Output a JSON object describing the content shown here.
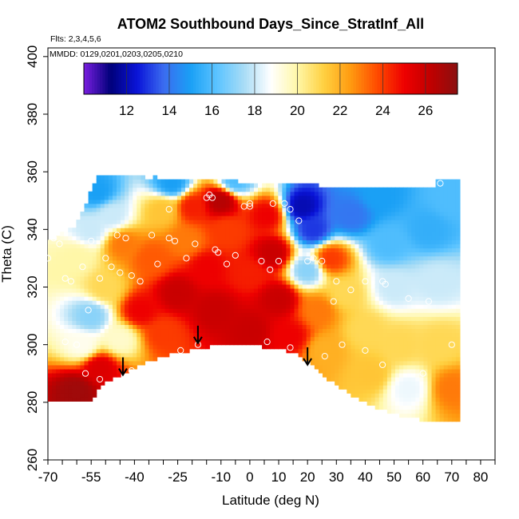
{
  "chart_data": {
    "type": "heatmap",
    "title": "ATOM2 Southbound Days_Since_StratInf_All",
    "flights_label": "Flts: 2,3,4,5,6",
    "dates_label": "MMDD: 0129,0201,0203,0205,0210",
    "xlabel": "Latitude (deg N)",
    "ylabel": "Theta (C)",
    "xlim": [
      -70,
      85
    ],
    "ylim": [
      260,
      403
    ],
    "x_ticks": [
      -70,
      -55,
      -40,
      -25,
      -10,
      0,
      10,
      20,
      30,
      40,
      50,
      60,
      70,
      80
    ],
    "y_ticks": [
      260,
      280,
      300,
      320,
      340,
      360,
      380,
      400
    ],
    "colorbar": {
      "range": [
        10,
        27.5
      ],
      "ticks": [
        12,
        14,
        16,
        18,
        20,
        22,
        24,
        26
      ],
      "colors": [
        "#7a1fe0",
        "#00007a",
        "#0a14d8",
        "#3b6cf0",
        "#1aa0f5",
        "#5cc4ff",
        "#a8dcf5",
        "#ffffff",
        "#fff7a8",
        "#ffd040",
        "#ff9a10",
        "#ff4a00",
        "#ee0000",
        "#c00000",
        "#8a1010"
      ]
    },
    "lower_boundary": {
      "lat": [
        -56,
        -50,
        -44,
        -38,
        -31,
        -24,
        -18,
        -13,
        -9,
        -2,
        6,
        15,
        20,
        26,
        33,
        40,
        47,
        54,
        61,
        70
      ],
      "theta": [
        280,
        287,
        290,
        293,
        295.5,
        297.5,
        298.5,
        299.5,
        300.5,
        300,
        299,
        297.5,
        294,
        289,
        284,
        280,
        277,
        275,
        273.5,
        273
      ]
    },
    "field": [
      {
        "lat": -60,
        "theta": 330,
        "value": 20
      },
      {
        "lat": -55,
        "theta": 340,
        "value": 18
      },
      {
        "lat": -53,
        "theta": 353,
        "value": 15
      },
      {
        "lat": -48,
        "theta": 345,
        "value": 18
      },
      {
        "lat": -44,
        "theta": 335,
        "value": 23
      },
      {
        "lat": -50,
        "theta": 320,
        "value": 21
      },
      {
        "lat": -55,
        "theta": 310,
        "value": 17
      },
      {
        "lat": -58,
        "theta": 300,
        "value": 19
      },
      {
        "lat": -60,
        "theta": 284,
        "value": 27
      },
      {
        "lat": -52,
        "theta": 292,
        "value": 25.5
      },
      {
        "lat": -45,
        "theta": 302,
        "value": 19.5
      },
      {
        "lat": -38,
        "theta": 312,
        "value": 25
      },
      {
        "lat": -34,
        "theta": 330,
        "value": 23.5
      },
      {
        "lat": -30,
        "theta": 347,
        "value": 21.5
      },
      {
        "lat": -27,
        "theta": 356,
        "value": 15
      },
      {
        "lat": -20,
        "theta": 348,
        "value": 24.5
      },
      {
        "lat": -22,
        "theta": 336,
        "value": 23
      },
      {
        "lat": -25,
        "theta": 318,
        "value": 26
      },
      {
        "lat": -30,
        "theta": 304,
        "value": 24
      },
      {
        "lat": -15,
        "theta": 327,
        "value": 25
      },
      {
        "lat": -12,
        "theta": 312,
        "value": 26
      },
      {
        "lat": -10,
        "theta": 350,
        "value": 26.5
      },
      {
        "lat": -8,
        "theta": 340,
        "value": 24
      },
      {
        "lat": -5,
        "theta": 357,
        "value": 16
      },
      {
        "lat": 0,
        "theta": 325,
        "value": 24.5
      },
      {
        "lat": 0,
        "theta": 305,
        "value": 26
      },
      {
        "lat": 6,
        "theta": 345,
        "value": 25
      },
      {
        "lat": 8,
        "theta": 332,
        "value": 26
      },
      {
        "lat": 10,
        "theta": 316,
        "value": 26
      },
      {
        "lat": 14,
        "theta": 303,
        "value": 25
      },
      {
        "lat": 18,
        "theta": 348,
        "value": 12
      },
      {
        "lat": 22,
        "theta": 340,
        "value": 13
      },
      {
        "lat": 20,
        "theta": 326,
        "value": 17
      },
      {
        "lat": 24,
        "theta": 312,
        "value": 23
      },
      {
        "lat": 26,
        "theta": 298,
        "value": 22
      },
      {
        "lat": 28,
        "theta": 330,
        "value": 24
      },
      {
        "lat": 33,
        "theta": 318,
        "value": 21
      },
      {
        "lat": 35,
        "theta": 345,
        "value": 14
      },
      {
        "lat": 40,
        "theta": 305,
        "value": 21
      },
      {
        "lat": 42,
        "theta": 290,
        "value": 21.5
      },
      {
        "lat": 45,
        "theta": 352,
        "value": 15
      },
      {
        "lat": 48,
        "theta": 335,
        "value": 16
      },
      {
        "lat": 50,
        "theta": 320,
        "value": 18
      },
      {
        "lat": 52,
        "theta": 300,
        "value": 21
      },
      {
        "lat": 55,
        "theta": 285,
        "value": 18.5
      },
      {
        "lat": 62,
        "theta": 340,
        "value": 15.5
      },
      {
        "lat": 65,
        "theta": 322,
        "value": 18
      },
      {
        "lat": 66,
        "theta": 300,
        "value": 21
      },
      {
        "lat": 70,
        "theta": 350,
        "value": 16
      },
      {
        "lat": 70,
        "theta": 285,
        "value": 23
      }
    ],
    "observations": [
      [
        -70,
        330
      ],
      [
        -68,
        337
      ],
      [
        -66,
        335
      ],
      [
        -64,
        323
      ],
      [
        -62,
        322
      ],
      [
        -58,
        327
      ],
      [
        -55,
        336
      ],
      [
        -52,
        323
      ],
      [
        -50,
        330
      ],
      [
        -48,
        327
      ],
      [
        -46,
        338
      ],
      [
        -45,
        325
      ],
      [
        -43,
        337
      ],
      [
        -41,
        324
      ],
      [
        -38,
        322
      ],
      [
        -34,
        338
      ],
      [
        -32,
        328
      ],
      [
        -28,
        337
      ],
      [
        -26,
        336
      ],
      [
        -22,
        330
      ],
      [
        -19,
        335
      ],
      [
        -15,
        351
      ],
      [
        -13,
        351
      ],
      [
        -12,
        333
      ],
      [
        -11,
        332
      ],
      [
        -8,
        328
      ],
      [
        -5,
        331
      ],
      [
        -2,
        348
      ],
      [
        0,
        348
      ],
      [
        4,
        329
      ],
      [
        7,
        326
      ],
      [
        10,
        329
      ],
      [
        12,
        349
      ],
      [
        14,
        347
      ],
      [
        17,
        343
      ],
      [
        20,
        329
      ],
      [
        22,
        330
      ],
      [
        25,
        329
      ],
      [
        29,
        315
      ],
      [
        30,
        322
      ],
      [
        35,
        319
      ],
      [
        40,
        322
      ],
      [
        46,
        322
      ],
      [
        47,
        321
      ],
      [
        55,
        316
      ],
      [
        62,
        315
      ],
      [
        66,
        356
      ],
      [
        -56,
        312
      ],
      [
        -60,
        300
      ],
      [
        -64,
        301
      ],
      [
        -57,
        290
      ],
      [
        -66,
        275
      ],
      [
        -52,
        288
      ],
      [
        -41,
        291
      ],
      [
        -24,
        298
      ],
      [
        -18,
        300
      ],
      [
        6,
        301
      ],
      [
        14,
        299
      ],
      [
        20,
        292
      ],
      [
        26,
        296
      ],
      [
        32,
        300
      ],
      [
        40,
        298
      ],
      [
        46,
        293
      ],
      [
        50,
        274
      ],
      [
        60,
        290
      ],
      [
        70,
        300
      ],
      [
        -28,
        347
      ],
      [
        -14,
        352
      ],
      [
        0,
        349
      ],
      [
        8,
        349
      ]
    ],
    "arrows": [
      {
        "lat": -44,
        "theta": 289.5
      },
      {
        "lat": -18,
        "theta": 300.5
      },
      {
        "lat": 20,
        "theta": 293
      }
    ]
  }
}
